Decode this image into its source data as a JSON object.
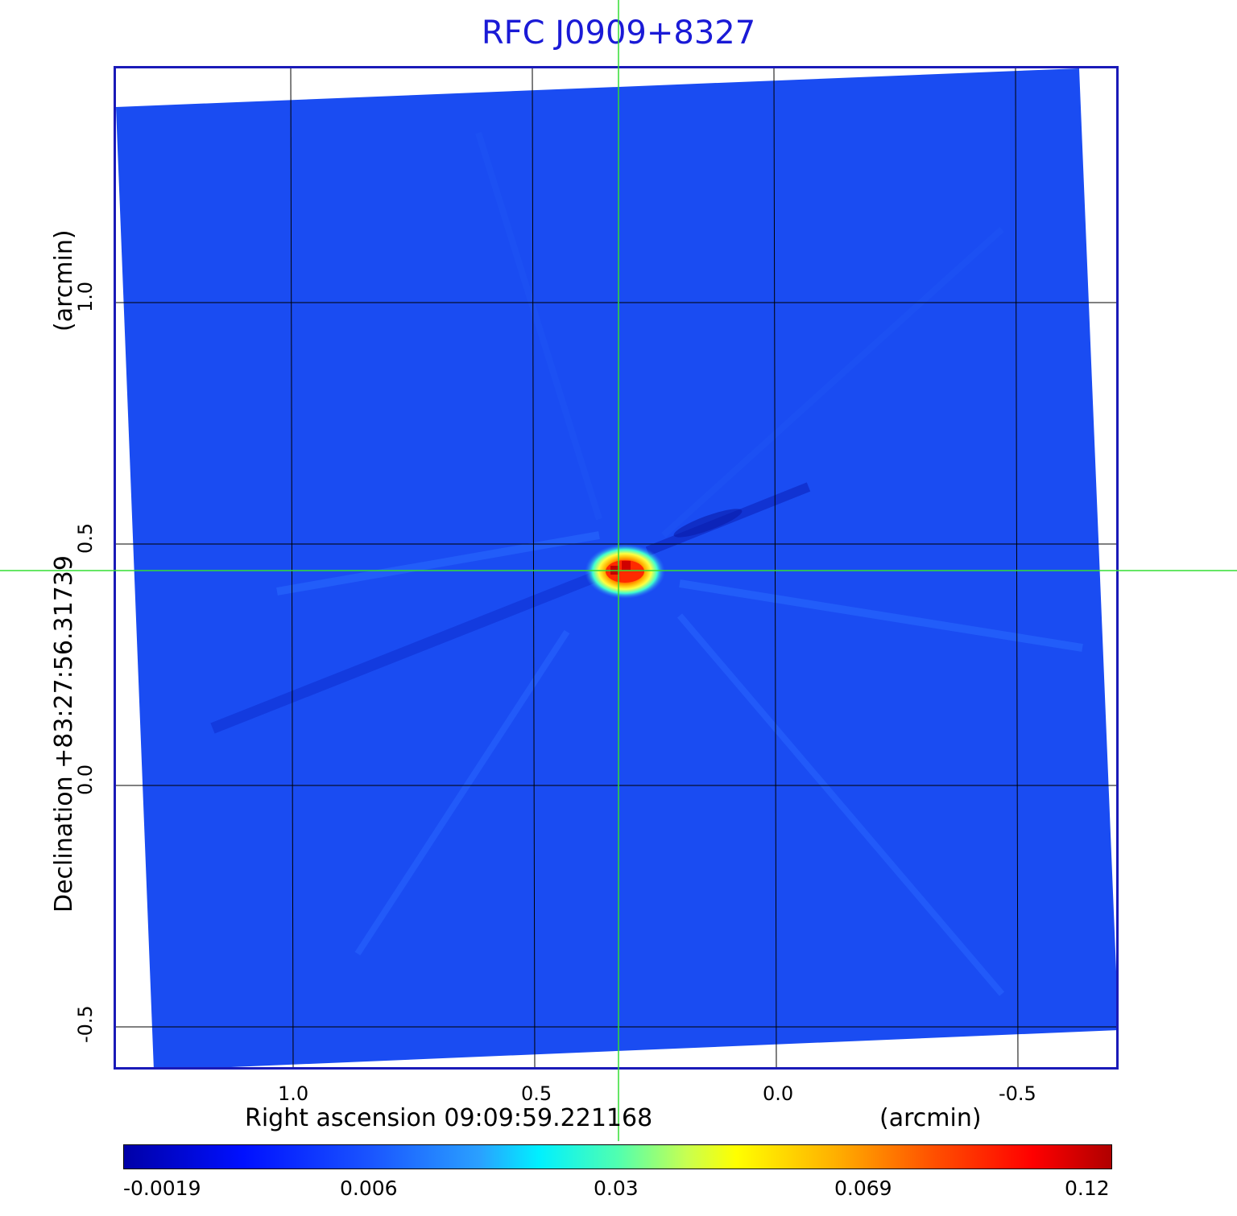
{
  "title": "RFC J0909+8327",
  "x_axis": {
    "label": "Right ascension  09:09:59.221168",
    "unit": "(arcmin)",
    "ticks": [
      "1.0",
      "0.5",
      "0.0",
      "-0.5"
    ]
  },
  "y_axis": {
    "label": "Declination  +83:27:56.31739",
    "unit": "(arcmin)",
    "ticks": [
      "1.0",
      "0.5",
      "0.0",
      "-0.5"
    ]
  },
  "colorbar": {
    "labels": [
      "-0.0019",
      "0.006",
      "0.03",
      "0.069",
      "0.12"
    ]
  },
  "colors": {
    "title": "#1a1ad6",
    "frame": "#1a1ab8",
    "background_map": "#1a4cf2",
    "crosshair": "#33dd33",
    "grid": "#000000"
  }
}
